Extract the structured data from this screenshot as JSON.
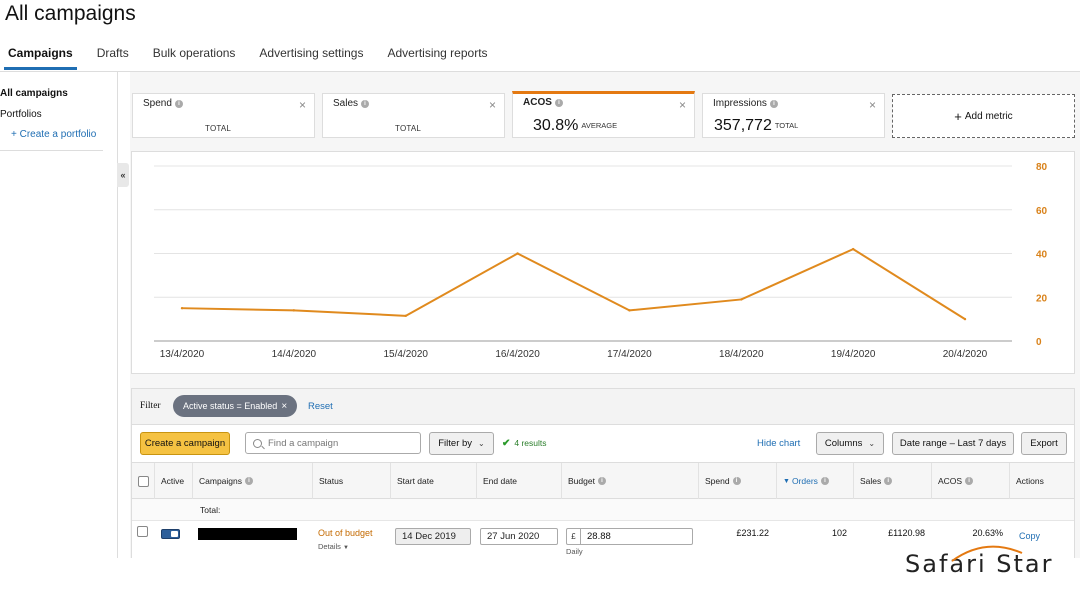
{
  "page": {
    "title": "All campaigns"
  },
  "tabs": [
    {
      "label": "Campaigns",
      "active": true
    },
    {
      "label": "Drafts"
    },
    {
      "label": "Bulk operations"
    },
    {
      "label": "Advertising settings"
    },
    {
      "label": "Advertising reports"
    }
  ],
  "sidebar": {
    "all_campaigns": "All campaigns",
    "portfolios": "Portfolios",
    "create_portfolio": "+ Create a portfolio",
    "collapse_icon": "«"
  },
  "metrics": [
    {
      "name": "Spend",
      "value": "",
      "sub": "TOTAL"
    },
    {
      "name": "Sales",
      "value": "",
      "sub": "TOTAL"
    },
    {
      "name": "ACOS",
      "value": "30.8%",
      "sub": "AVERAGE",
      "active": true
    },
    {
      "name": "Impressions",
      "value": "357,772",
      "sub": "TOTAL"
    }
  ],
  "add_metric": {
    "label": "Add metric",
    "icon": "+"
  },
  "chart_data": {
    "type": "line",
    "categories": [
      "13/4/2020",
      "14/4/2020",
      "15/4/2020",
      "16/4/2020",
      "17/4/2020",
      "18/4/2020",
      "19/4/2020",
      "20/4/2020"
    ],
    "series": [
      {
        "values": [
          15,
          14,
          11.5,
          40,
          14,
          19,
          42,
          10
        ],
        "color": "#e08a1e"
      }
    ],
    "y_axis_side": "right",
    "yticks": [
      0,
      20,
      40,
      60,
      80
    ],
    "ylim": [
      0,
      80
    ],
    "grid": true
  },
  "filter": {
    "label": "Filter",
    "pill": "Active status = Enabled",
    "pill_close": "×",
    "reset": "Reset"
  },
  "toolbar": {
    "create_campaign": "Create a campaign",
    "search_placeholder": "Find a campaign",
    "filter_by": "Filter by",
    "results": "4 results",
    "hide_chart": "Hide chart",
    "columns": "Columns",
    "date_range": "Date range – Last 7 days",
    "export": "Export"
  },
  "table": {
    "headers": {
      "active": "Active",
      "campaigns": "Campaigns",
      "status": "Status",
      "start_date": "Start date",
      "end_date": "End date",
      "budget": "Budget",
      "spend": "Spend",
      "orders": "Orders",
      "sales": "Sales",
      "acos": "ACOS",
      "actions": "Actions"
    },
    "total_label": "Total:",
    "rows": [
      {
        "status": "Out of budget",
        "details": "Details",
        "start_date": "14 Dec 2019",
        "end_date": "27 Jun 2020",
        "budget_currency": "£",
        "budget_amount": "28.88",
        "budget_type": "Daily",
        "spend": "£231.22",
        "orders": "102",
        "sales": "£1120.98",
        "acos": "20.63%",
        "action": "Copy"
      }
    ]
  },
  "watermark": {
    "text": "Safari Star"
  }
}
